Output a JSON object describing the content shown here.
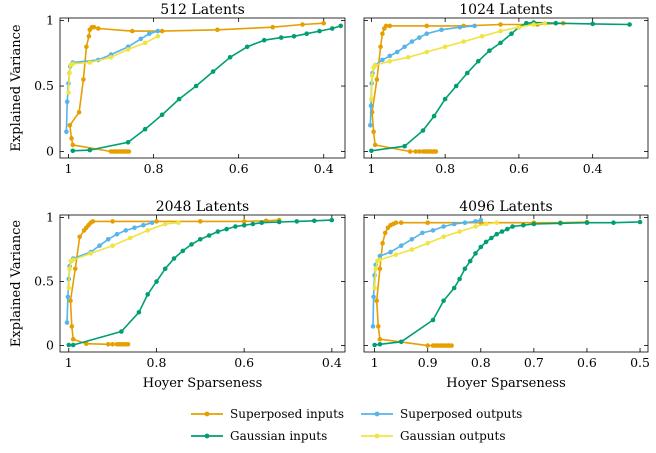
{
  "chart_data": [
    {
      "type": "line",
      "title": "512 Latents",
      "xlabel": "",
      "ylabel": "Explained Variance",
      "xlim": [
        1.02,
        0.35
      ],
      "ylim": [
        -0.05,
        1.02
      ],
      "xticks": [
        1,
        0.8,
        0.6,
        0.4
      ],
      "xtick_labels": [
        "1",
        "0.8",
        "0.6",
        "0.4"
      ],
      "yticks": [
        0,
        0.5,
        1
      ],
      "ytick_labels": [
        "0",
        "0.5",
        "1"
      ],
      "series": [
        {
          "name": "Superposed inputs",
          "x": [
            0.858,
            0.862,
            0.866,
            0.87,
            0.874,
            0.878,
            0.882,
            0.886,
            0.89,
            0.894,
            0.9,
            0.99,
            0.993,
            0.997,
            0.975,
            0.965,
            0.958,
            0.952,
            0.95,
            0.945,
            0.94,
            0.93,
            0.85,
            0.78,
            0.65,
            0.52,
            0.45,
            0.4
          ],
          "y": [
            0.0,
            0.0,
            0.0,
            0.0,
            0.0,
            0.0,
            0.0,
            0.0,
            0.0,
            0.0,
            0.0,
            0.05,
            0.1,
            0.2,
            0.3,
            0.55,
            0.8,
            0.88,
            0.93,
            0.95,
            0.95,
            0.94,
            0.92,
            0.92,
            0.93,
            0.95,
            0.97,
            0.98
          ]
        },
        {
          "name": "Gaussian inputs",
          "x": [
            0.99,
            0.95,
            0.86,
            0.82,
            0.78,
            0.74,
            0.7,
            0.66,
            0.62,
            0.58,
            0.54,
            0.5,
            0.47,
            0.44,
            0.41,
            0.38,
            0.36
          ],
          "y": [
            0.005,
            0.01,
            0.07,
            0.17,
            0.28,
            0.4,
            0.5,
            0.61,
            0.72,
            0.8,
            0.85,
            0.87,
            0.88,
            0.9,
            0.92,
            0.94,
            0.96
          ]
        },
        {
          "name": "Superposed outputs",
          "x": [
            1.005,
            1.003,
            1.0,
            0.998,
            0.996,
            0.99,
            0.93,
            0.9,
            0.86,
            0.83,
            0.81,
            0.79
          ],
          "y": [
            0.15,
            0.38,
            0.52,
            0.6,
            0.65,
            0.68,
            0.7,
            0.74,
            0.8,
            0.86,
            0.9,
            0.92
          ]
        },
        {
          "name": "Gaussian outputs",
          "x": [
            1.0,
            0.998,
            0.995,
            0.99,
            0.95,
            0.9,
            0.86,
            0.82,
            0.79
          ],
          "y": [
            0.45,
            0.6,
            0.66,
            0.67,
            0.68,
            0.72,
            0.78,
            0.83,
            0.88
          ]
        }
      ]
    },
    {
      "type": "line",
      "title": "1024 Latents",
      "xlabel": "",
      "ylabel": "",
      "xlim": [
        1.02,
        0.25
      ],
      "ylim": [
        -0.05,
        1.02
      ],
      "xticks": [
        1,
        0.8,
        0.6,
        0.4
      ],
      "xtick_labels": [
        "1",
        "0.8",
        "0.6",
        "0.4"
      ],
      "yticks": [
        0,
        0.5,
        1
      ],
      "ytick_labels": [
        "0",
        "0.5",
        "1"
      ],
      "series": [
        {
          "name": "Superposed inputs",
          "x": [
            0.825,
            0.83,
            0.835,
            0.84,
            0.845,
            0.85,
            0.855,
            0.86,
            0.87,
            0.88,
            0.895,
            0.99,
            0.994,
            0.998,
            0.985,
            0.975,
            0.97,
            0.965,
            0.96,
            0.95,
            0.85,
            0.75,
            0.65,
            0.55,
            0.48
          ],
          "y": [
            0.0,
            0.0,
            0.0,
            0.0,
            0.0,
            0.0,
            0.0,
            0.0,
            0.0,
            0.0,
            0.0,
            0.05,
            0.15,
            0.3,
            0.55,
            0.8,
            0.9,
            0.94,
            0.96,
            0.96,
            0.96,
            0.96,
            0.97,
            0.97,
            0.98
          ]
        },
        {
          "name": "Gaussian inputs",
          "x": [
            1.0,
            0.91,
            0.86,
            0.83,
            0.8,
            0.77,
            0.74,
            0.71,
            0.68,
            0.65,
            0.62,
            0.6,
            0.58,
            0.56,
            0.5,
            0.4,
            0.3
          ],
          "y": [
            0.005,
            0.04,
            0.16,
            0.27,
            0.4,
            0.5,
            0.6,
            0.69,
            0.77,
            0.83,
            0.9,
            0.95,
            0.98,
            0.985,
            0.98,
            0.975,
            0.97
          ]
        },
        {
          "name": "Superposed outputs",
          "x": [
            1.003,
            1.001,
            0.999,
            0.997,
            0.99,
            0.97,
            0.95,
            0.93,
            0.91,
            0.89,
            0.87,
            0.85,
            0.81,
            0.76,
            0.72
          ],
          "y": [
            0.2,
            0.35,
            0.52,
            0.6,
            0.66,
            0.7,
            0.73,
            0.76,
            0.8,
            0.84,
            0.87,
            0.9,
            0.93,
            0.95,
            0.96
          ]
        },
        {
          "name": "Gaussian outputs",
          "x": [
            1.0,
            0.998,
            0.994,
            0.99,
            0.95,
            0.9,
            0.85,
            0.8,
            0.75,
            0.7,
            0.65,
            0.6,
            0.56,
            0.53
          ],
          "y": [
            0.4,
            0.58,
            0.64,
            0.66,
            0.69,
            0.72,
            0.76,
            0.8,
            0.84,
            0.88,
            0.92,
            0.95,
            0.97,
            0.98
          ]
        }
      ]
    },
    {
      "type": "line",
      "title": "2048 Latents",
      "xlabel": "Hoyer Sparseness",
      "ylabel": "Explained Variance",
      "xlim": [
        1.02,
        0.37
      ],
      "ylim": [
        -0.05,
        1.02
      ],
      "xticks": [
        1,
        0.8,
        0.6,
        0.4
      ],
      "xtick_labels": [
        "1",
        "0.8",
        "0.6",
        "0.4"
      ],
      "yticks": [
        0,
        0.5,
        1
      ],
      "ytick_labels": [
        "0",
        "0.5",
        "1"
      ],
      "series": [
        {
          "name": "Superposed inputs",
          "x": [
            0.865,
            0.87,
            0.875,
            0.88,
            0.885,
            0.89,
            0.9,
            0.91,
            0.96,
            0.99,
            0.993,
            0.996,
            0.985,
            0.975,
            0.965,
            0.96,
            0.955,
            0.95,
            0.945,
            0.9,
            0.8,
            0.7,
            0.6,
            0.55,
            0.52
          ],
          "y": [
            0.01,
            0.01,
            0.01,
            0.01,
            0.01,
            0.01,
            0.01,
            0.01,
            0.015,
            0.05,
            0.15,
            0.35,
            0.6,
            0.85,
            0.9,
            0.92,
            0.94,
            0.96,
            0.97,
            0.97,
            0.97,
            0.97,
            0.97,
            0.975,
            0.98
          ]
        },
        {
          "name": "Gaussian inputs",
          "x": [
            1.0,
            0.99,
            0.88,
            0.84,
            0.82,
            0.8,
            0.78,
            0.76,
            0.74,
            0.72,
            0.7,
            0.68,
            0.66,
            0.64,
            0.62,
            0.6,
            0.58,
            0.56,
            0.52,
            0.48,
            0.44,
            0.4
          ],
          "y": [
            0.005,
            0.005,
            0.11,
            0.26,
            0.4,
            0.5,
            0.6,
            0.68,
            0.74,
            0.79,
            0.83,
            0.86,
            0.89,
            0.91,
            0.93,
            0.94,
            0.95,
            0.96,
            0.965,
            0.97,
            0.975,
            0.98
          ]
        },
        {
          "name": "Superposed outputs",
          "x": [
            1.004,
            1.002,
            1.0,
            0.998,
            0.995,
            0.99,
            0.95,
            0.93,
            0.91,
            0.89,
            0.87,
            0.85,
            0.83,
            0.81
          ],
          "y": [
            0.18,
            0.38,
            0.52,
            0.62,
            0.66,
            0.68,
            0.73,
            0.78,
            0.83,
            0.87,
            0.9,
            0.92,
            0.94,
            0.96
          ]
        },
        {
          "name": "Gaussian outputs",
          "x": [
            1.0,
            0.998,
            0.995,
            0.99,
            0.95,
            0.9,
            0.86,
            0.82,
            0.78,
            0.75
          ],
          "y": [
            0.45,
            0.6,
            0.66,
            0.67,
            0.72,
            0.78,
            0.84,
            0.9,
            0.95,
            0.96
          ]
        }
      ]
    },
    {
      "type": "line",
      "title": "4096 Latents",
      "xlabel": "Hoyer Sparseness",
      "ylabel": "",
      "xlim": [
        1.02,
        0.485
      ],
      "ylim": [
        -0.05,
        1.02
      ],
      "xticks": [
        1,
        0.9,
        0.8,
        0.7,
        0.6,
        0.5
      ],
      "xtick_labels": [
        "1",
        "0.9",
        "0.8",
        "0.7",
        "0.6",
        "0.5"
      ],
      "yticks": [
        0,
        0.5,
        1
      ],
      "ytick_labels": [
        "0",
        "0.5",
        "1"
      ],
      "series": [
        {
          "name": "Superposed inputs",
          "x": [
            0.855,
            0.86,
            0.865,
            0.87,
            0.875,
            0.88,
            0.885,
            0.89,
            0.9,
            0.99,
            0.993,
            0.996,
            0.99,
            0.985,
            0.98,
            0.975,
            0.97,
            0.965,
            0.96,
            0.95,
            0.9,
            0.8,
            0.7,
            0.65,
            0.6
          ],
          "y": [
            0.0,
            0.0,
            0.0,
            0.0,
            0.0,
            0.0,
            0.0,
            0.0,
            0.0,
            0.05,
            0.15,
            0.35,
            0.6,
            0.8,
            0.88,
            0.92,
            0.94,
            0.95,
            0.96,
            0.96,
            0.96,
            0.96,
            0.96,
            0.96,
            0.965
          ]
        },
        {
          "name": "Gaussian inputs",
          "x": [
            1.0,
            0.99,
            0.95,
            0.89,
            0.87,
            0.85,
            0.84,
            0.83,
            0.82,
            0.81,
            0.8,
            0.79,
            0.78,
            0.77,
            0.76,
            0.75,
            0.74,
            0.72,
            0.7,
            0.65,
            0.6,
            0.55,
            0.5
          ],
          "y": [
            0.005,
            0.01,
            0.03,
            0.2,
            0.35,
            0.45,
            0.52,
            0.6,
            0.66,
            0.72,
            0.77,
            0.81,
            0.84,
            0.87,
            0.89,
            0.91,
            0.93,
            0.94,
            0.95,
            0.955,
            0.96,
            0.96,
            0.965
          ]
        },
        {
          "name": "Superposed outputs",
          "x": [
            1.003,
            1.002,
            1.0,
            0.998,
            0.99,
            0.97,
            0.95,
            0.93,
            0.91,
            0.89,
            0.87,
            0.85,
            0.83,
            0.81,
            0.8
          ],
          "y": [
            0.15,
            0.38,
            0.55,
            0.63,
            0.7,
            0.73,
            0.78,
            0.83,
            0.88,
            0.9,
            0.93,
            0.95,
            0.96,
            0.97,
            0.98
          ]
        },
        {
          "name": "Gaussian outputs",
          "x": [
            1.0,
            0.998,
            0.995,
            0.99,
            0.96,
            0.93,
            0.9,
            0.87,
            0.84,
            0.81,
            0.79,
            0.77
          ],
          "y": [
            0.45,
            0.6,
            0.66,
            0.67,
            0.71,
            0.75,
            0.8,
            0.85,
            0.89,
            0.93,
            0.95,
            0.96
          ]
        }
      ]
    }
  ],
  "colors": {
    "superposed_inputs": "#E69F00",
    "gaussian_inputs": "#009E73",
    "superposed_outputs": "#56B4E9",
    "gaussian_outputs": "#F0E442"
  },
  "legend": [
    {
      "label": "Superposed inputs",
      "color_key": "superposed_inputs"
    },
    {
      "label": "Superposed outputs",
      "color_key": "superposed_outputs"
    },
    {
      "label": "Gaussian inputs",
      "color_key": "gaussian_inputs"
    },
    {
      "label": "Gaussian outputs",
      "color_key": "gaussian_outputs"
    }
  ]
}
